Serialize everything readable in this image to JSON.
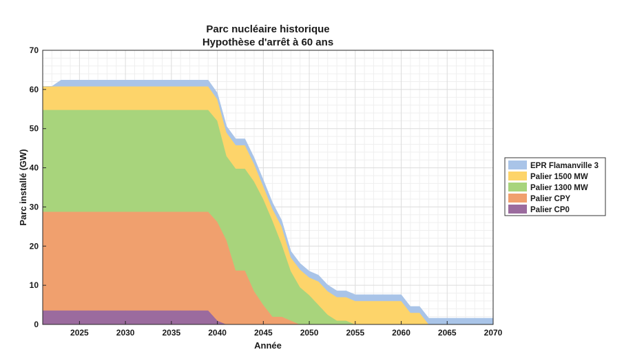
{
  "chart_data": {
    "type": "area",
    "title": [
      "Parc nucléaire historique",
      "Hypothèse d'arrêt à 60 ans"
    ],
    "xlabel": "Année",
    "ylabel": "Parc installé (GW)",
    "xlim": [
      2021,
      2070
    ],
    "ylim": [
      0,
      70
    ],
    "xticks": [
      2025,
      2030,
      2035,
      2040,
      2045,
      2050,
      2055,
      2060,
      2065,
      2070
    ],
    "yticks": [
      0,
      10,
      20,
      30,
      40,
      50,
      60,
      70
    ],
    "grid": true,
    "stacked": true,
    "legend_position": "right",
    "x": [
      2021,
      2022,
      2023,
      2024,
      2025,
      2026,
      2027,
      2028,
      2029,
      2030,
      2031,
      2032,
      2033,
      2034,
      2035,
      2036,
      2037,
      2038,
      2039,
      2040,
      2041,
      2042,
      2043,
      2044,
      2045,
      2046,
      2047,
      2048,
      2049,
      2050,
      2051,
      2052,
      2053,
      2054,
      2055,
      2056,
      2057,
      2058,
      2059,
      2060,
      2061,
      2062,
      2063,
      2064,
      2065,
      2066,
      2067,
      2068,
      2069,
      2070
    ],
    "series": [
      {
        "name": "Palier CP0",
        "color": "#9b6b9e",
        "values": [
          3.6,
          3.6,
          3.6,
          3.6,
          3.6,
          3.6,
          3.6,
          3.6,
          3.6,
          3.6,
          3.6,
          3.6,
          3.6,
          3.6,
          3.6,
          3.6,
          3.6,
          3.6,
          3.6,
          1.0,
          0,
          0,
          0,
          0,
          0,
          0,
          0,
          0,
          0,
          0,
          0,
          0,
          0,
          0,
          0,
          0,
          0,
          0,
          0,
          0,
          0,
          0,
          0,
          0,
          0,
          0,
          0,
          0,
          0,
          0
        ]
      },
      {
        "name": "Palier CPY",
        "color": "#f0a06e",
        "values": [
          25.2,
          25.2,
          25.2,
          25.2,
          25.2,
          25.2,
          25.2,
          25.2,
          25.2,
          25.2,
          25.2,
          25.2,
          25.2,
          25.2,
          25.2,
          25.2,
          25.2,
          25.2,
          25.2,
          25.2,
          21.5,
          13.8,
          13.8,
          8.5,
          5.0,
          2.0,
          2.0,
          1.0,
          0,
          0,
          0,
          0,
          0,
          0,
          0,
          0,
          0,
          0,
          0,
          0,
          0,
          0,
          0,
          0,
          0,
          0,
          0,
          0,
          0,
          0
        ]
      },
      {
        "name": "Palier 1300 MW",
        "color": "#a8d47c",
        "values": [
          26.0,
          26.0,
          26.0,
          26.0,
          26.0,
          26.0,
          26.0,
          26.0,
          26.0,
          26.0,
          26.0,
          26.0,
          26.0,
          26.0,
          26.0,
          26.0,
          26.0,
          26.0,
          26.0,
          25.8,
          21.5,
          26.0,
          26.0,
          28.0,
          27.0,
          24.5,
          18.5,
          12.6,
          9.5,
          7.5,
          5.0,
          2.5,
          1.0,
          1.0,
          0,
          0,
          0,
          0,
          0,
          0,
          0,
          0,
          0,
          0,
          0,
          0,
          0,
          0,
          0,
          0
        ]
      },
      {
        "name": "Palier 1500 MW",
        "color": "#fdd46a",
        "values": [
          6.0,
          6.0,
          6.0,
          6.0,
          6.0,
          6.0,
          6.0,
          6.0,
          6.0,
          6.0,
          6.0,
          6.0,
          6.0,
          6.0,
          6.0,
          6.0,
          6.0,
          6.0,
          6.0,
          5.5,
          6.0,
          6.0,
          6.0,
          4.5,
          3.3,
          3.0,
          4.5,
          3.5,
          4.5,
          4.5,
          6.0,
          6.0,
          6.0,
          6.0,
          6.0,
          6.0,
          6.0,
          6.0,
          6.0,
          6.0,
          3.0,
          3.0,
          0,
          0,
          0,
          0,
          0,
          0,
          0,
          0
        ]
      },
      {
        "name": "EPR Flamanville 3",
        "color": "#a9c4e8",
        "values": [
          0,
          0,
          1.6,
          1.6,
          1.6,
          1.6,
          1.6,
          1.6,
          1.6,
          1.6,
          1.6,
          1.6,
          1.6,
          1.6,
          1.6,
          1.6,
          1.6,
          1.6,
          1.6,
          1.6,
          1.6,
          1.6,
          1.6,
          1.6,
          1.6,
          1.6,
          1.6,
          1.6,
          1.6,
          1.6,
          1.6,
          1.6,
          1.6,
          1.6,
          1.6,
          1.6,
          1.6,
          1.6,
          1.6,
          1.6,
          1.6,
          1.6,
          1.6,
          1.6,
          1.6,
          1.6,
          1.6,
          1.6,
          1.6,
          1.6
        ]
      }
    ],
    "legend_order": [
      "EPR Flamanville 3",
      "Palier 1500 MW",
      "Palier 1300 MW",
      "Palier CPY",
      "Palier CP0"
    ]
  }
}
